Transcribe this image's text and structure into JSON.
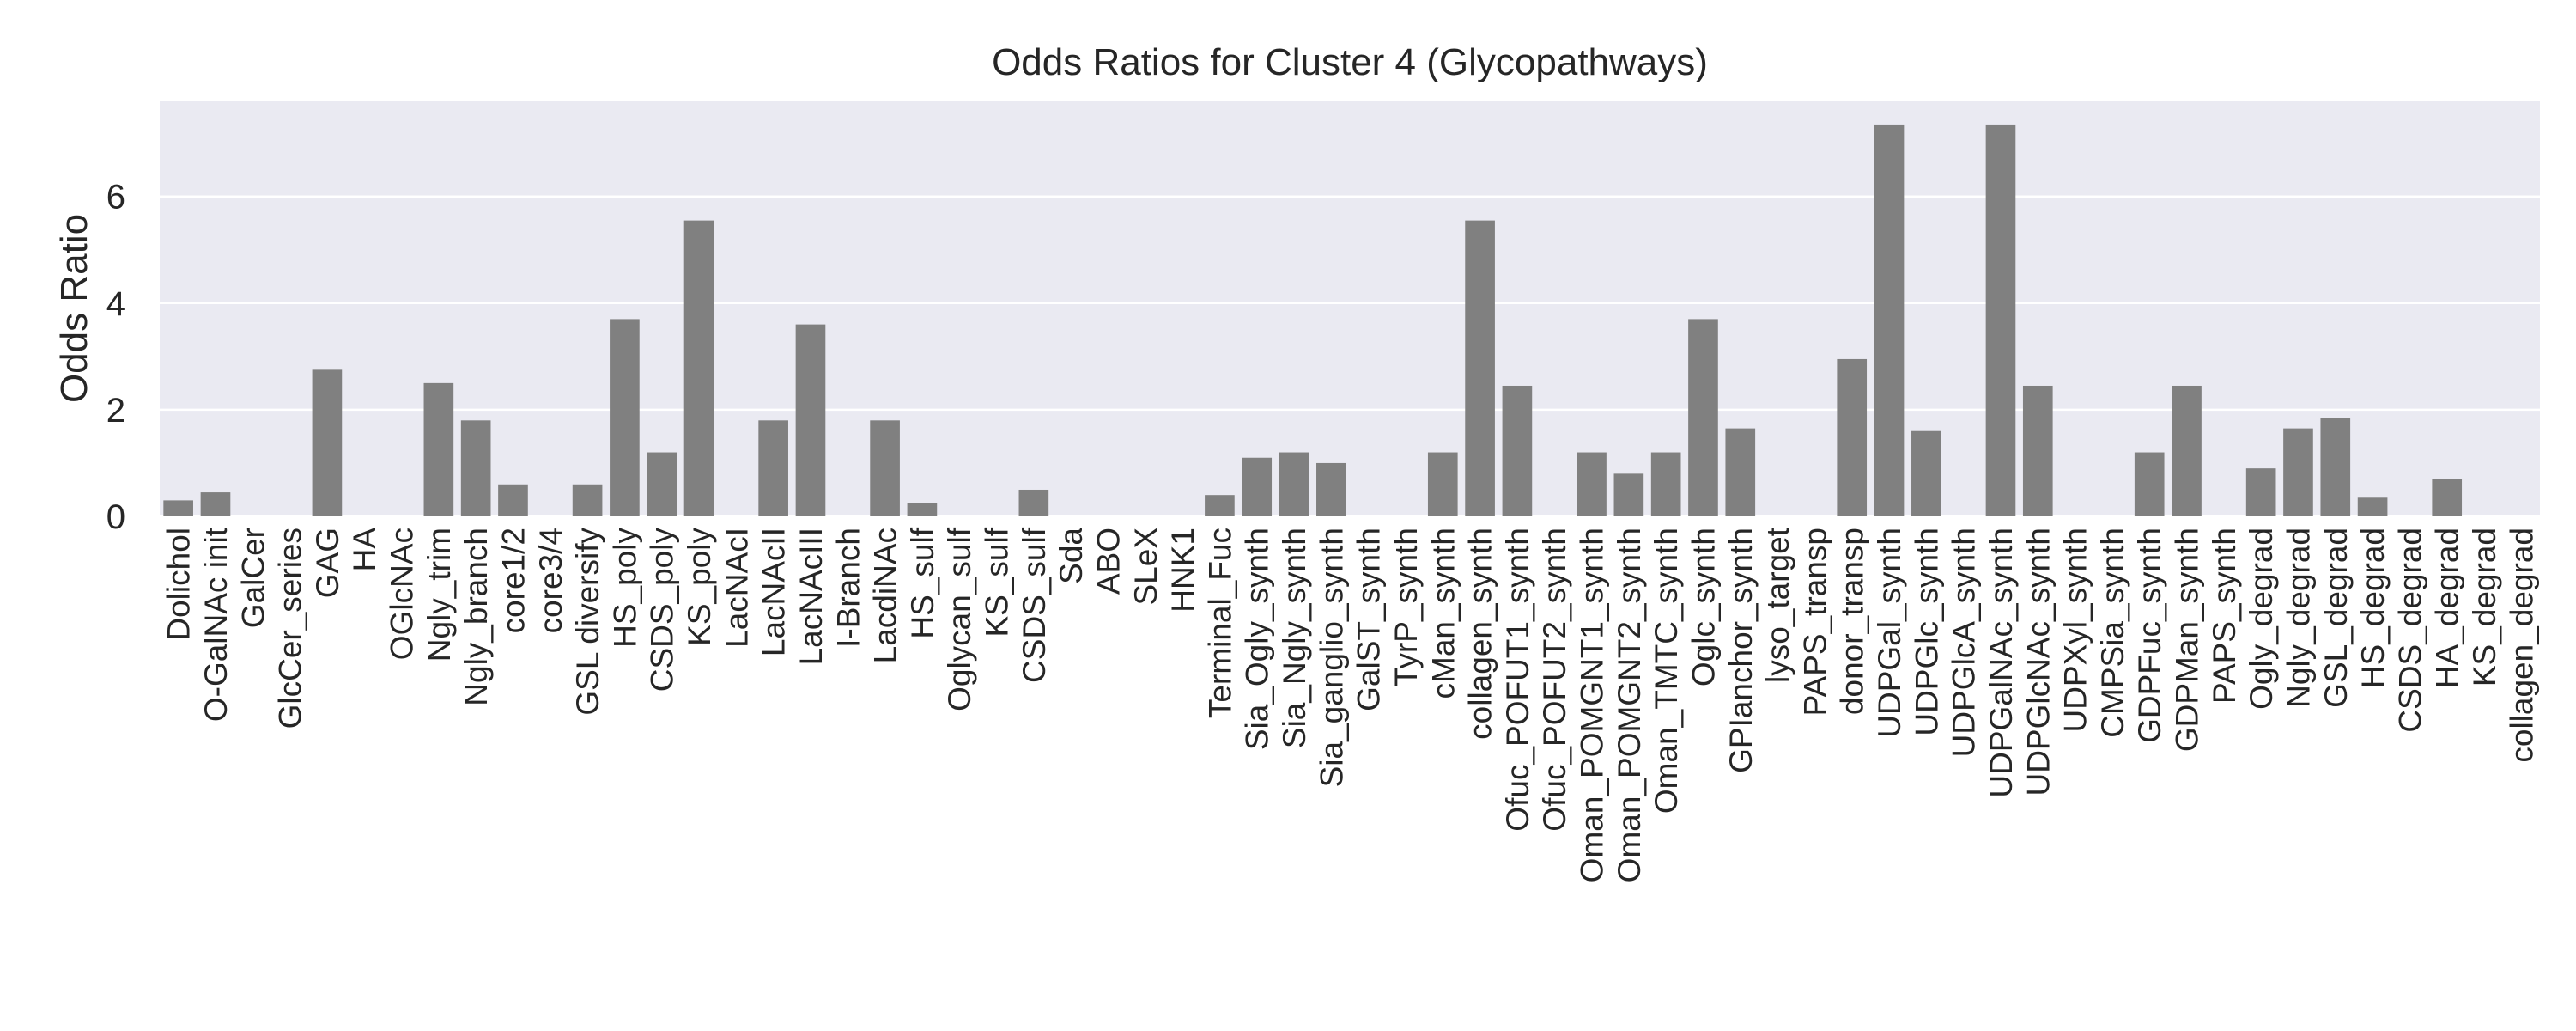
{
  "chart_data": {
    "type": "bar",
    "title": "Odds Ratios for Cluster 4 (Glycopathways)",
    "xlabel": "",
    "ylabel": "Odds Ratio",
    "ylim": [
      0,
      7.8
    ],
    "yticks": [
      0,
      2,
      4,
      6
    ],
    "grid": true,
    "legend": "none",
    "colors": {
      "bar": "#808080",
      "plot_background": "#eaeaf2",
      "grid": "#ffffff",
      "text": "#262626"
    },
    "categories": [
      "Dolichol",
      "O-GalNAc init",
      "GalCer",
      "GlcCer_series",
      "GAG",
      "HA",
      "OGlcNAc",
      "Ngly_trim",
      "Ngly_branch",
      "core1/2",
      "core3/4",
      "GSL diversify",
      "HS_poly",
      "CSDS_poly",
      "KS_poly",
      "LacNAcI",
      "LacNAcII",
      "LacNAcIII",
      "I-Branch",
      "LacdiNAc",
      "HS_sulf",
      "Oglycan_sulf",
      "KS_sulf",
      "CSDS_sulf",
      "Sda",
      "ABO",
      "SLeX",
      "HNK1",
      "Terminal_Fuc",
      "Sia_Ogly_synth",
      "Sia_Ngly_synth",
      "Sia_ganglio_synth",
      "GalST_synth",
      "TyrP_synth",
      "cMan_synth",
      "collagen_synth",
      "Ofuc_POFUT1_synth",
      "Ofuc_POFUT2_synth",
      "Oman_POMGNT1_synth",
      "Oman_POMGNT2_synth",
      "Oman_TMTC_synth",
      "Oglc_synth",
      "GPIanchor_synth",
      "lyso_target",
      "PAPS_transp",
      "donor_transp",
      "UDPGal_synth",
      "UDPGlc_synth",
      "UDPGlcA_synth",
      "UDPGalNAc_synth",
      "UDPGlcNAc_synth",
      "UDPXyl_synth",
      "CMPSia_synth",
      "GDPFuc_synth",
      "GDPMan_synth",
      "PAPS_synth",
      "Ogly_degrad",
      "Ngly_degrad",
      "GSL_degrad",
      "HS_degrad",
      "CSDS_degrad",
      "HA_degrad",
      "KS_degrad",
      "collagen_degrad"
    ],
    "values": [
      0.3,
      0.45,
      0,
      0,
      2.75,
      0,
      0,
      2.5,
      1.8,
      0.6,
      0,
      0.6,
      3.7,
      1.2,
      5.55,
      0,
      1.8,
      3.6,
      0,
      1.8,
      0.25,
      0,
      0,
      0.5,
      0,
      0,
      0,
      0,
      0.4,
      1.1,
      1.2,
      1.0,
      0,
      0,
      1.2,
      5.55,
      2.45,
      0,
      1.2,
      0.8,
      1.2,
      3.7,
      1.65,
      0,
      0,
      2.95,
      7.35,
      1.6,
      0,
      7.35,
      2.45,
      0,
      0,
      1.2,
      2.45,
      0,
      0.9,
      1.65,
      1.85,
      0.35,
      0,
      0.7,
      0,
      0
    ]
  }
}
